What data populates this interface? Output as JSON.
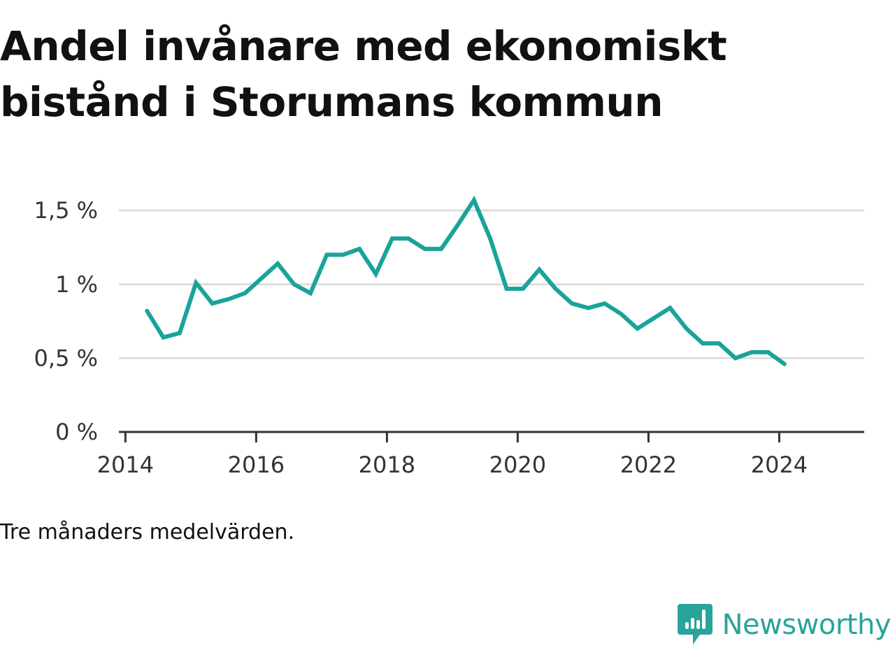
{
  "title": "Andel invånare med ekonomiskt bistånd i Storumans kommun",
  "note": "Tre månaders medelvärden.",
  "brand": {
    "name": "Newsworthy",
    "icon": "bar-chart-speech-bubble-icon",
    "color": "#2aa39a"
  },
  "colors": {
    "line": "#1aa39a",
    "grid": "#d9d9d9",
    "axis": "#333333"
  },
  "chart_data": {
    "type": "line",
    "title": "Andel invånare med ekonomiskt bistånd i Storumans kommun",
    "xlabel": "",
    "ylabel": "",
    "ylim": [
      0,
      1.6
    ],
    "xlim": [
      2013.9,
      2025.3
    ],
    "grid": true,
    "yticks": [
      0,
      0.5,
      1,
      1.5
    ],
    "ytick_labels": [
      "0 %",
      "0,5 %",
      "1 %",
      "1,5 %"
    ],
    "xticks": [
      2014,
      2016,
      2018,
      2020,
      2022,
      2024
    ],
    "xtick_labels": [
      "2014",
      "2016",
      "2018",
      "2020",
      "2022",
      "2024"
    ],
    "series": [
      {
        "x": [
          2014.33,
          2014.58,
          2014.83,
          2015.08,
          2015.33,
          2015.58,
          2015.83,
          2016.08,
          2016.33,
          2016.58,
          2016.83,
          2017.08,
          2017.33,
          2017.58,
          2017.83,
          2018.08,
          2018.33,
          2018.58,
          2018.83,
          2019.08,
          2019.33,
          2019.58,
          2019.83,
          2020.08,
          2020.33,
          2020.58,
          2020.83,
          2021.08,
          2021.33,
          2021.58,
          2021.83,
          2022.08,
          2022.33,
          2022.58,
          2022.83,
          2023.08,
          2023.33,
          2023.58,
          2023.83,
          2024.08
        ],
        "values": [
          0.82,
          0.64,
          0.67,
          1.01,
          0.87,
          0.9,
          0.94,
          1.04,
          1.14,
          1.0,
          0.94,
          1.2,
          1.2,
          1.24,
          1.07,
          1.31,
          1.31,
          1.24,
          1.24,
          1.4,
          1.57,
          1.31,
          0.97,
          0.97,
          1.1,
          0.97,
          0.87,
          0.84,
          0.87,
          0.8,
          0.7,
          0.77,
          0.84,
          0.7,
          0.6,
          0.6,
          0.5,
          0.54,
          0.54,
          0.46
        ]
      }
    ]
  }
}
